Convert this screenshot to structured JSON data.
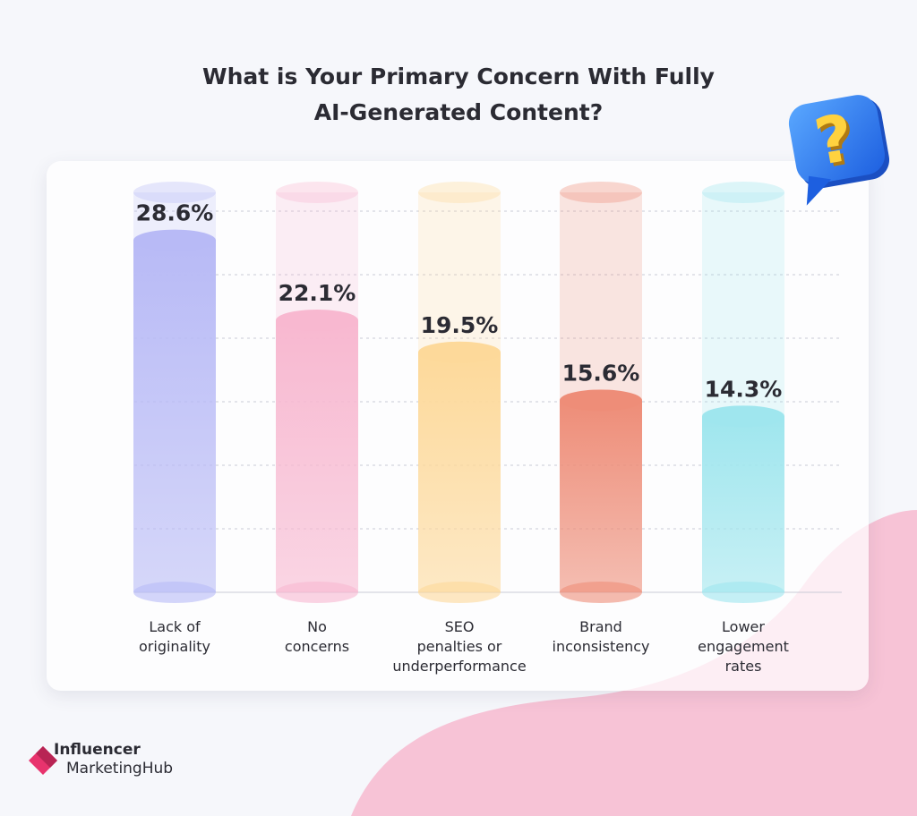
{
  "title_lines": [
    "What is Your Primary Concern With Fully",
    "AI-Generated Content?"
  ],
  "chart_data": {
    "type": "bar",
    "title": "What is Your Primary Concern With Fully AI-Generated Content?",
    "categories": [
      "Lack of\noriginality",
      "No\nconcerns",
      "SEO\npenalties or\nunderperformance",
      "Brand\ninconsistency",
      "Lower\nengagement\nrates"
    ],
    "values": [
      28.6,
      22.1,
      19.5,
      15.6,
      14.3
    ],
    "value_labels": [
      "28.6%",
      "22.1%",
      "19.5%",
      "15.6%",
      "14.3%"
    ],
    "unit": "%",
    "ylim": [
      0,
      32.5
    ],
    "grid": true,
    "colors": [
      "#b8baf6",
      "#f8b8d0",
      "#fdd99a",
      "#ee8d78",
      "#9fe6ee"
    ],
    "legend": "none"
  },
  "badge": {
    "glyph": "?",
    "icon": "question-speech-bubble-icon"
  },
  "logo": {
    "line1": "Influencer",
    "line2": "MarketingHub",
    "accent": "#e8336d"
  }
}
